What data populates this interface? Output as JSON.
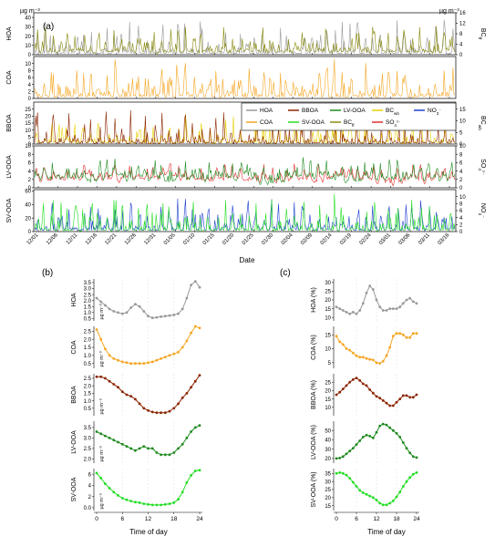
{
  "colors": {
    "HOA": "#999999",
    "COA": "#f5a623",
    "BBOA": "#8b2500",
    "LV-OOA": "#1f8a1f",
    "SV-OOA": "#22dd22",
    "BC_wb": "#e8d000",
    "BC_ff": "#8a8a10",
    "SO4": "#e03030",
    "NO3": "#1f3fd0"
  },
  "chart_data": [
    {
      "type": "line",
      "panel": "(a)",
      "xlabel": "Date",
      "x_ticks": [
        "12/01",
        "12/06",
        "12/11",
        "12/16",
        "12/21",
        "12/26",
        "12/31",
        "01/05",
        "01/10",
        "01/15",
        "01/20",
        "01/25",
        "01/30",
        "02/04",
        "02/09",
        "02/14",
        "02/19",
        "02/24",
        "03/01",
        "03/06",
        "03/11",
        "03/16"
      ],
      "legend": {
        "placement": "inside-right",
        "entries": [
          "HOA",
          "BBOA",
          "LV-OOA",
          "BC_wb",
          "NO3⁻",
          "COA",
          "SV-OOA",
          "BC_ff",
          "SO4²⁻"
        ]
      },
      "units_left": "µg m⁻³",
      "units_right": "µg m⁻³",
      "rows": [
        {
          "name": "HOA",
          "left_ticks": [
            "0",
            "10",
            "20",
            "30",
            "40"
          ],
          "ylim": [
            0,
            45
          ],
          "right_label": "BC_ff",
          "right_ticks": [
            "0",
            "4",
            "8",
            "12",
            "16"
          ],
          "right_ylim": [
            0,
            16
          ],
          "series": [
            "HOA",
            "BC_ff"
          ]
        },
        {
          "name": "COA",
          "left_ticks": [
            "0",
            "2",
            "4",
            "6",
            "8",
            "10"
          ],
          "ylim": [
            0,
            12
          ],
          "series": [
            "COA"
          ]
        },
        {
          "name": "BBOA",
          "left_ticks": [
            "0",
            "5",
            "10",
            "15",
            "20",
            "25"
          ],
          "ylim": [
            0,
            30
          ],
          "right_label": "BC_wb",
          "right_ticks": [
            "0",
            "5",
            "10",
            "15"
          ],
          "right_ylim": [
            0,
            18
          ],
          "series": [
            "BC_wb",
            "BBOA"
          ]
        },
        {
          "name": "LV-OOA",
          "left_ticks": [
            "0",
            "2",
            "4",
            "6",
            "8",
            "10"
          ],
          "ylim": [
            0,
            10
          ],
          "right_label": "SO4²⁻",
          "right_ticks": [
            "0",
            "2",
            "4",
            "6",
            "8",
            "10"
          ],
          "right_ylim": [
            0,
            10
          ],
          "series": [
            "SO4",
            "LV-OOA"
          ]
        },
        {
          "name": "SV-OOA",
          "left_ticks": [
            "0",
            "20",
            "40",
            "60"
          ],
          "ylim": [
            0,
            62
          ],
          "right_label": "NO3⁻",
          "right_ticks": [
            "0",
            "2",
            "4",
            "6",
            "8",
            "10"
          ],
          "right_ylim": [
            0,
            12
          ],
          "series": [
            "NO3",
            "SV-OOA"
          ]
        }
      ]
    },
    {
      "type": "line",
      "panel": "(b)",
      "xlabel": "Time of day",
      "x_ticks": [
        0,
        6,
        12,
        18,
        24
      ],
      "units": "µg m⁻³",
      "x": [
        0,
        1,
        2,
        3,
        4,
        5,
        6,
        7,
        8,
        9,
        10,
        11,
        12,
        13,
        14,
        15,
        16,
        17,
        18,
        19,
        20,
        21,
        22,
        23,
        24
      ],
      "series": [
        {
          "name": "HOA",
          "yticks": [
            0.5,
            1.0,
            1.5,
            2.0,
            2.5,
            3.0,
            3.5
          ],
          "ylim": [
            0.3,
            3.8
          ],
          "values": [
            2.2,
            1.9,
            1.6,
            1.3,
            1.1,
            1.0,
            0.9,
            1.0,
            1.4,
            1.7,
            1.5,
            1.1,
            0.7,
            0.55,
            0.6,
            0.65,
            0.7,
            0.75,
            0.8,
            0.9,
            1.3,
            2.2,
            3.3,
            3.6,
            3.1
          ]
        },
        {
          "name": "COA",
          "yticks": [
            0.5,
            1.0,
            1.5,
            2.0,
            2.5
          ],
          "ylim": [
            0.2,
            2.8
          ],
          "values": [
            2.6,
            2.0,
            1.4,
            1.0,
            0.8,
            0.7,
            0.6,
            0.55,
            0.5,
            0.5,
            0.5,
            0.5,
            0.55,
            0.6,
            0.7,
            0.8,
            0.9,
            1.0,
            1.1,
            1.2,
            1.5,
            1.9,
            2.4,
            2.8,
            2.7
          ]
        },
        {
          "name": "BBOA",
          "yticks": [
            0.5,
            1.0,
            1.5,
            2.0,
            2.5
          ],
          "ylim": [
            0,
            2.8
          ],
          "values": [
            2.6,
            2.6,
            2.5,
            2.3,
            2.1,
            1.9,
            1.6,
            1.4,
            1.3,
            1.1,
            0.8,
            0.5,
            0.35,
            0.25,
            0.2,
            0.2,
            0.2,
            0.3,
            0.5,
            0.8,
            1.2,
            1.5,
            1.9,
            2.3,
            2.7
          ]
        },
        {
          "name": "LV-OOA",
          "yticks": [
            2.0,
            2.5,
            3.0,
            3.5
          ],
          "ylim": [
            1.8,
            3.8
          ],
          "values": [
            3.3,
            3.2,
            3.1,
            3.0,
            2.9,
            2.8,
            2.7,
            2.6,
            2.5,
            2.4,
            2.5,
            2.6,
            2.5,
            2.5,
            2.3,
            2.2,
            2.2,
            2.2,
            2.3,
            2.5,
            2.7,
            3.0,
            3.3,
            3.5,
            3.6
          ]
        },
        {
          "name": "SV-OOA",
          "yticks": [
            0,
            2,
            4,
            6
          ],
          "ylim": [
            -0.5,
            7
          ],
          "values": [
            6.2,
            5.3,
            4.3,
            3.5,
            2.8,
            2.2,
            1.7,
            1.4,
            1.2,
            1.0,
            0.9,
            0.7,
            0.6,
            0.5,
            0.5,
            0.5,
            0.6,
            0.7,
            0.9,
            1.5,
            2.8,
            4.5,
            5.8,
            6.6,
            6.7
          ]
        }
      ]
    },
    {
      "type": "line",
      "panel": "(c)",
      "xlabel": "Time of day",
      "x_ticks": [
        0,
        6,
        12,
        18,
        24
      ],
      "x": [
        0,
        1,
        2,
        3,
        4,
        5,
        6,
        7,
        8,
        9,
        10,
        11,
        12,
        13,
        14,
        15,
        16,
        17,
        18,
        19,
        20,
        21,
        22,
        23,
        24
      ],
      "series": [
        {
          "name": "HOA (%)",
          "yticks": [
            10,
            15,
            20,
            25,
            30
          ],
          "ylim": [
            8,
            32
          ],
          "values": [
            16,
            15,
            14,
            13,
            12,
            13,
            12,
            14,
            18,
            24,
            28,
            26,
            20,
            16,
            14,
            14,
            15,
            15,
            15,
            16,
            18,
            20,
            21,
            19,
            18
          ]
        },
        {
          "name": "COA (%)",
          "yticks": [
            5,
            10,
            15
          ],
          "ylim": [
            3,
            18
          ],
          "values": [
            14.5,
            12.5,
            11.5,
            10,
            9.5,
            8.5,
            7.5,
            7,
            7,
            6.5,
            6.2,
            6,
            5,
            4.8,
            5.5,
            7.5,
            10.5,
            14.5,
            15.5,
            15.5,
            15,
            14,
            14,
            15.5,
            15.5
          ]
        },
        {
          "name": "BBOA (%)",
          "yticks": [
            10,
            15,
            20,
            25
          ],
          "ylim": [
            5,
            30
          ],
          "values": [
            17.5,
            19,
            21,
            23,
            25,
            26.5,
            27.5,
            26,
            24,
            23,
            20.5,
            18.5,
            16.5,
            15.5,
            14,
            12.5,
            11,
            11,
            13,
            15,
            17,
            17,
            16,
            16,
            17.5
          ]
        },
        {
          "name": "LV-OOA (%)",
          "yticks": [
            20,
            30,
            40,
            50
          ],
          "ylim": [
            15,
            60
          ],
          "values": [
            20,
            20.5,
            22,
            25,
            28,
            31,
            35,
            39,
            43,
            45,
            44,
            42,
            48,
            55,
            57,
            56,
            53,
            50,
            47,
            43,
            37,
            31,
            26,
            22,
            21
          ]
        },
        {
          "name": "SV-OOA (%)",
          "yticks": [
            15,
            20,
            25,
            30,
            35
          ],
          "ylim": [
            12,
            38
          ],
          "values": [
            35,
            35.5,
            35,
            34,
            32,
            29.5,
            27,
            24.5,
            23,
            22,
            21,
            20,
            18.5,
            16.5,
            15.5,
            15.5,
            16.5,
            18,
            20.5,
            23.5,
            27,
            30,
            32.5,
            34.5,
            35.5
          ]
        }
      ]
    }
  ],
  "labels": {
    "panel_a": "(a)",
    "panel_b": "(b)",
    "panel_c": "(c)",
    "units_a_left": "µg m⁻³",
    "units_a_right": "µg m⁻³",
    "units_b": "µg m⁻³",
    "xlabel_a": "Date",
    "xlabel_b": "Time of day",
    "xlabel_c": "Time of day"
  }
}
